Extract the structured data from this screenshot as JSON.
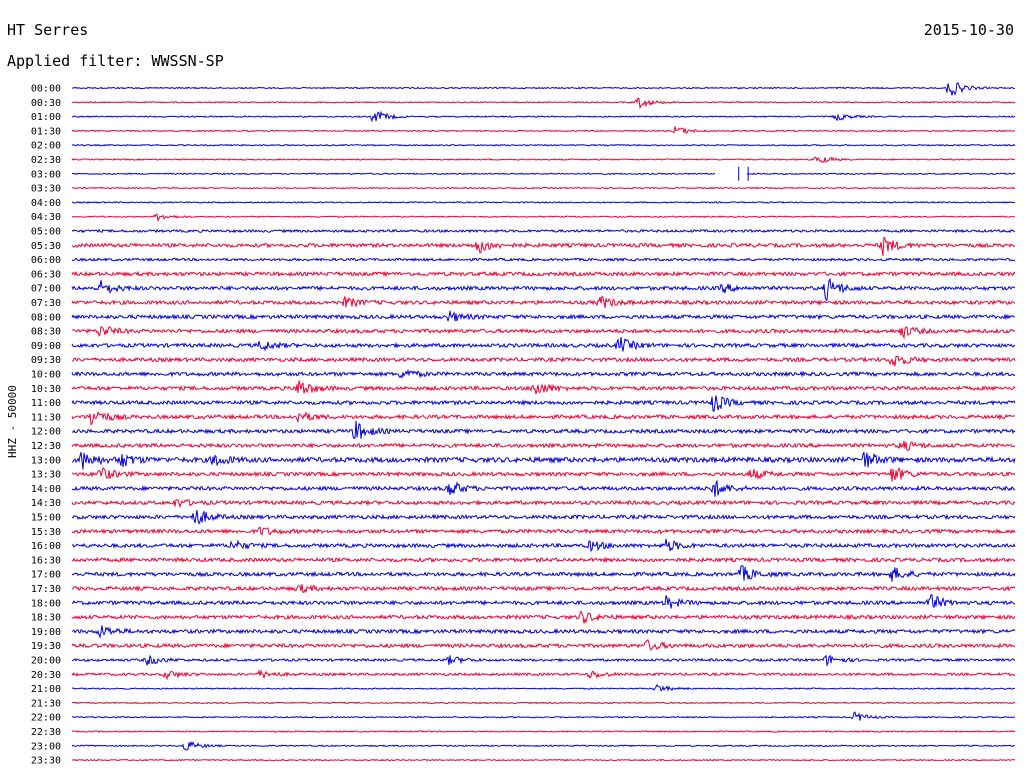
{
  "header": {
    "station": "HT Serres",
    "date": "2015-10-30",
    "filter": "Applied filter: WWSSN-SP"
  },
  "chart_data": {
    "type": "line",
    "title": "HT Serres",
    "subtitle": "Applied filter: WWSSN-SP",
    "ylabel": "HHZ - 50000",
    "xlabel": "",
    "grid": false,
    "colors": [
      "#0000dd",
      "#ee0033"
    ],
    "rows": [
      "00:00",
      "00:30",
      "01:00",
      "01:30",
      "02:00",
      "02:30",
      "03:00",
      "03:30",
      "04:00",
      "04:30",
      "05:00",
      "05:30",
      "06:00",
      "06:30",
      "07:00",
      "07:30",
      "08:00",
      "08:30",
      "09:00",
      "09:30",
      "10:00",
      "10:30",
      "11:00",
      "11:30",
      "12:00",
      "12:30",
      "13:00",
      "13:30",
      "14:00",
      "14:30",
      "15:00",
      "15:30",
      "16:00",
      "16:30",
      "17:00",
      "17:30",
      "18:00",
      "18:30",
      "19:00",
      "19:30",
      "20:00",
      "20:30",
      "21:00",
      "21:30",
      "22:00",
      "22:30",
      "23:00",
      "23:30"
    ],
    "noise_level": [
      1,
      1,
      1,
      1,
      1,
      1,
      1,
      1,
      1,
      1,
      2,
      3,
      2,
      3,
      3,
      3,
      3,
      3,
      3,
      3,
      3,
      3,
      3,
      3,
      3,
      3,
      4,
      3,
      3,
      3,
      3,
      3,
      3,
      3,
      3,
      3,
      3,
      3,
      3,
      3,
      2,
      2,
      1,
      1,
      1,
      1,
      1,
      1
    ],
    "events": [
      [
        0,
        0.93,
        10
      ],
      [
        1,
        0.6,
        6
      ],
      [
        2,
        0.32,
        7
      ],
      [
        2,
        0.81,
        4
      ],
      [
        3,
        0.64,
        5
      ],
      [
        5,
        0.79,
        5
      ],
      [
        9,
        0.09,
        4
      ],
      [
        11,
        0.43,
        8
      ],
      [
        11,
        0.86,
        9
      ],
      [
        14,
        0.03,
        7
      ],
      [
        14,
        0.69,
        4
      ],
      [
        14,
        0.8,
        11
      ],
      [
        15,
        0.29,
        5
      ],
      [
        15,
        0.56,
        6
      ],
      [
        16,
        0.4,
        5
      ],
      [
        17,
        0.03,
        6
      ],
      [
        17,
        0.88,
        6
      ],
      [
        18,
        0.2,
        5
      ],
      [
        18,
        0.58,
        8
      ],
      [
        19,
        0.87,
        8
      ],
      [
        20,
        0.35,
        5
      ],
      [
        21,
        0.24,
        9
      ],
      [
        21,
        0.49,
        8
      ],
      [
        22,
        0.68,
        9
      ],
      [
        23,
        0.02,
        10
      ],
      [
        23,
        0.24,
        5
      ],
      [
        24,
        0.3,
        10
      ],
      [
        25,
        0.88,
        5
      ],
      [
        26,
        0.01,
        9
      ],
      [
        26,
        0.05,
        8
      ],
      [
        26,
        0.15,
        6
      ],
      [
        26,
        0.84,
        8
      ],
      [
        27,
        0.03,
        7
      ],
      [
        27,
        0.72,
        5
      ],
      [
        27,
        0.87,
        8
      ],
      [
        28,
        0.4,
        8
      ],
      [
        28,
        0.68,
        9
      ],
      [
        29,
        0.11,
        4
      ],
      [
        30,
        0.13,
        9
      ],
      [
        31,
        0.2,
        4
      ],
      [
        32,
        0.17,
        5
      ],
      [
        32,
        0.55,
        5
      ],
      [
        32,
        0.63,
        6
      ],
      [
        34,
        0.71,
        8
      ],
      [
        34,
        0.87,
        7
      ],
      [
        35,
        0.24,
        4
      ],
      [
        36,
        0.63,
        6
      ],
      [
        36,
        0.91,
        8
      ],
      [
        37,
        0.54,
        6
      ],
      [
        38,
        0.03,
        6
      ],
      [
        39,
        0.61,
        5
      ],
      [
        40,
        0.08,
        5
      ],
      [
        40,
        0.4,
        4
      ],
      [
        40,
        0.8,
        5
      ],
      [
        41,
        0.1,
        4
      ],
      [
        41,
        0.2,
        4
      ],
      [
        41,
        0.55,
        4
      ],
      [
        42,
        0.62,
        4
      ],
      [
        44,
        0.83,
        5
      ],
      [
        46,
        0.12,
        6
      ]
    ],
    "gap": {
      "row": 6,
      "from": 0.682,
      "to": 0.715
    }
  }
}
